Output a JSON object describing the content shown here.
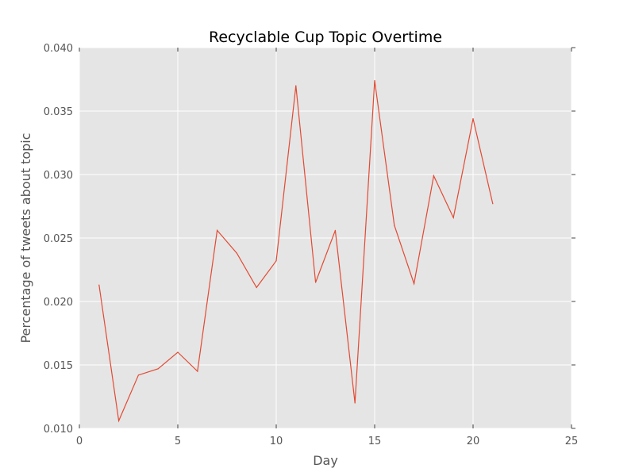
{
  "chart_data": {
    "type": "line",
    "title": "Recyclable Cup Topic Overtime",
    "xlabel": "Day",
    "ylabel": "Percentage of tweets about topic",
    "xlim": [
      0,
      25
    ],
    "ylim": [
      0.01,
      0.04
    ],
    "xticks": [
      0,
      5,
      10,
      15,
      20,
      25
    ],
    "xtick_labels": [
      "0",
      "5",
      "10",
      "15",
      "20",
      "25"
    ],
    "yticks": [
      0.01,
      0.015,
      0.02,
      0.025,
      0.03,
      0.035,
      0.04
    ],
    "ytick_labels": [
      "0.010",
      "0.015",
      "0.020",
      "0.025",
      "0.030",
      "0.035",
      "0.040"
    ],
    "grid": true,
    "series": [
      {
        "color": "#e24a33",
        "x": [
          1,
          2,
          3,
          4,
          5,
          6,
          7,
          8,
          9,
          10,
          11,
          12,
          13,
          14,
          15,
          16,
          17,
          18,
          19,
          20,
          21
        ],
        "y": [
          0.0213,
          0.0106,
          0.0142,
          0.0147,
          0.016,
          0.0145,
          0.0256,
          0.0238,
          0.0211,
          0.0232,
          0.037,
          0.0215,
          0.0256,
          0.012,
          0.0374,
          0.026,
          0.0214,
          0.0299,
          0.0266,
          0.0344,
          0.0277
        ]
      }
    ]
  },
  "colors": {
    "plot_background": "#e5e5e5",
    "grid": "#ffffff",
    "line": "#e24a33"
  }
}
